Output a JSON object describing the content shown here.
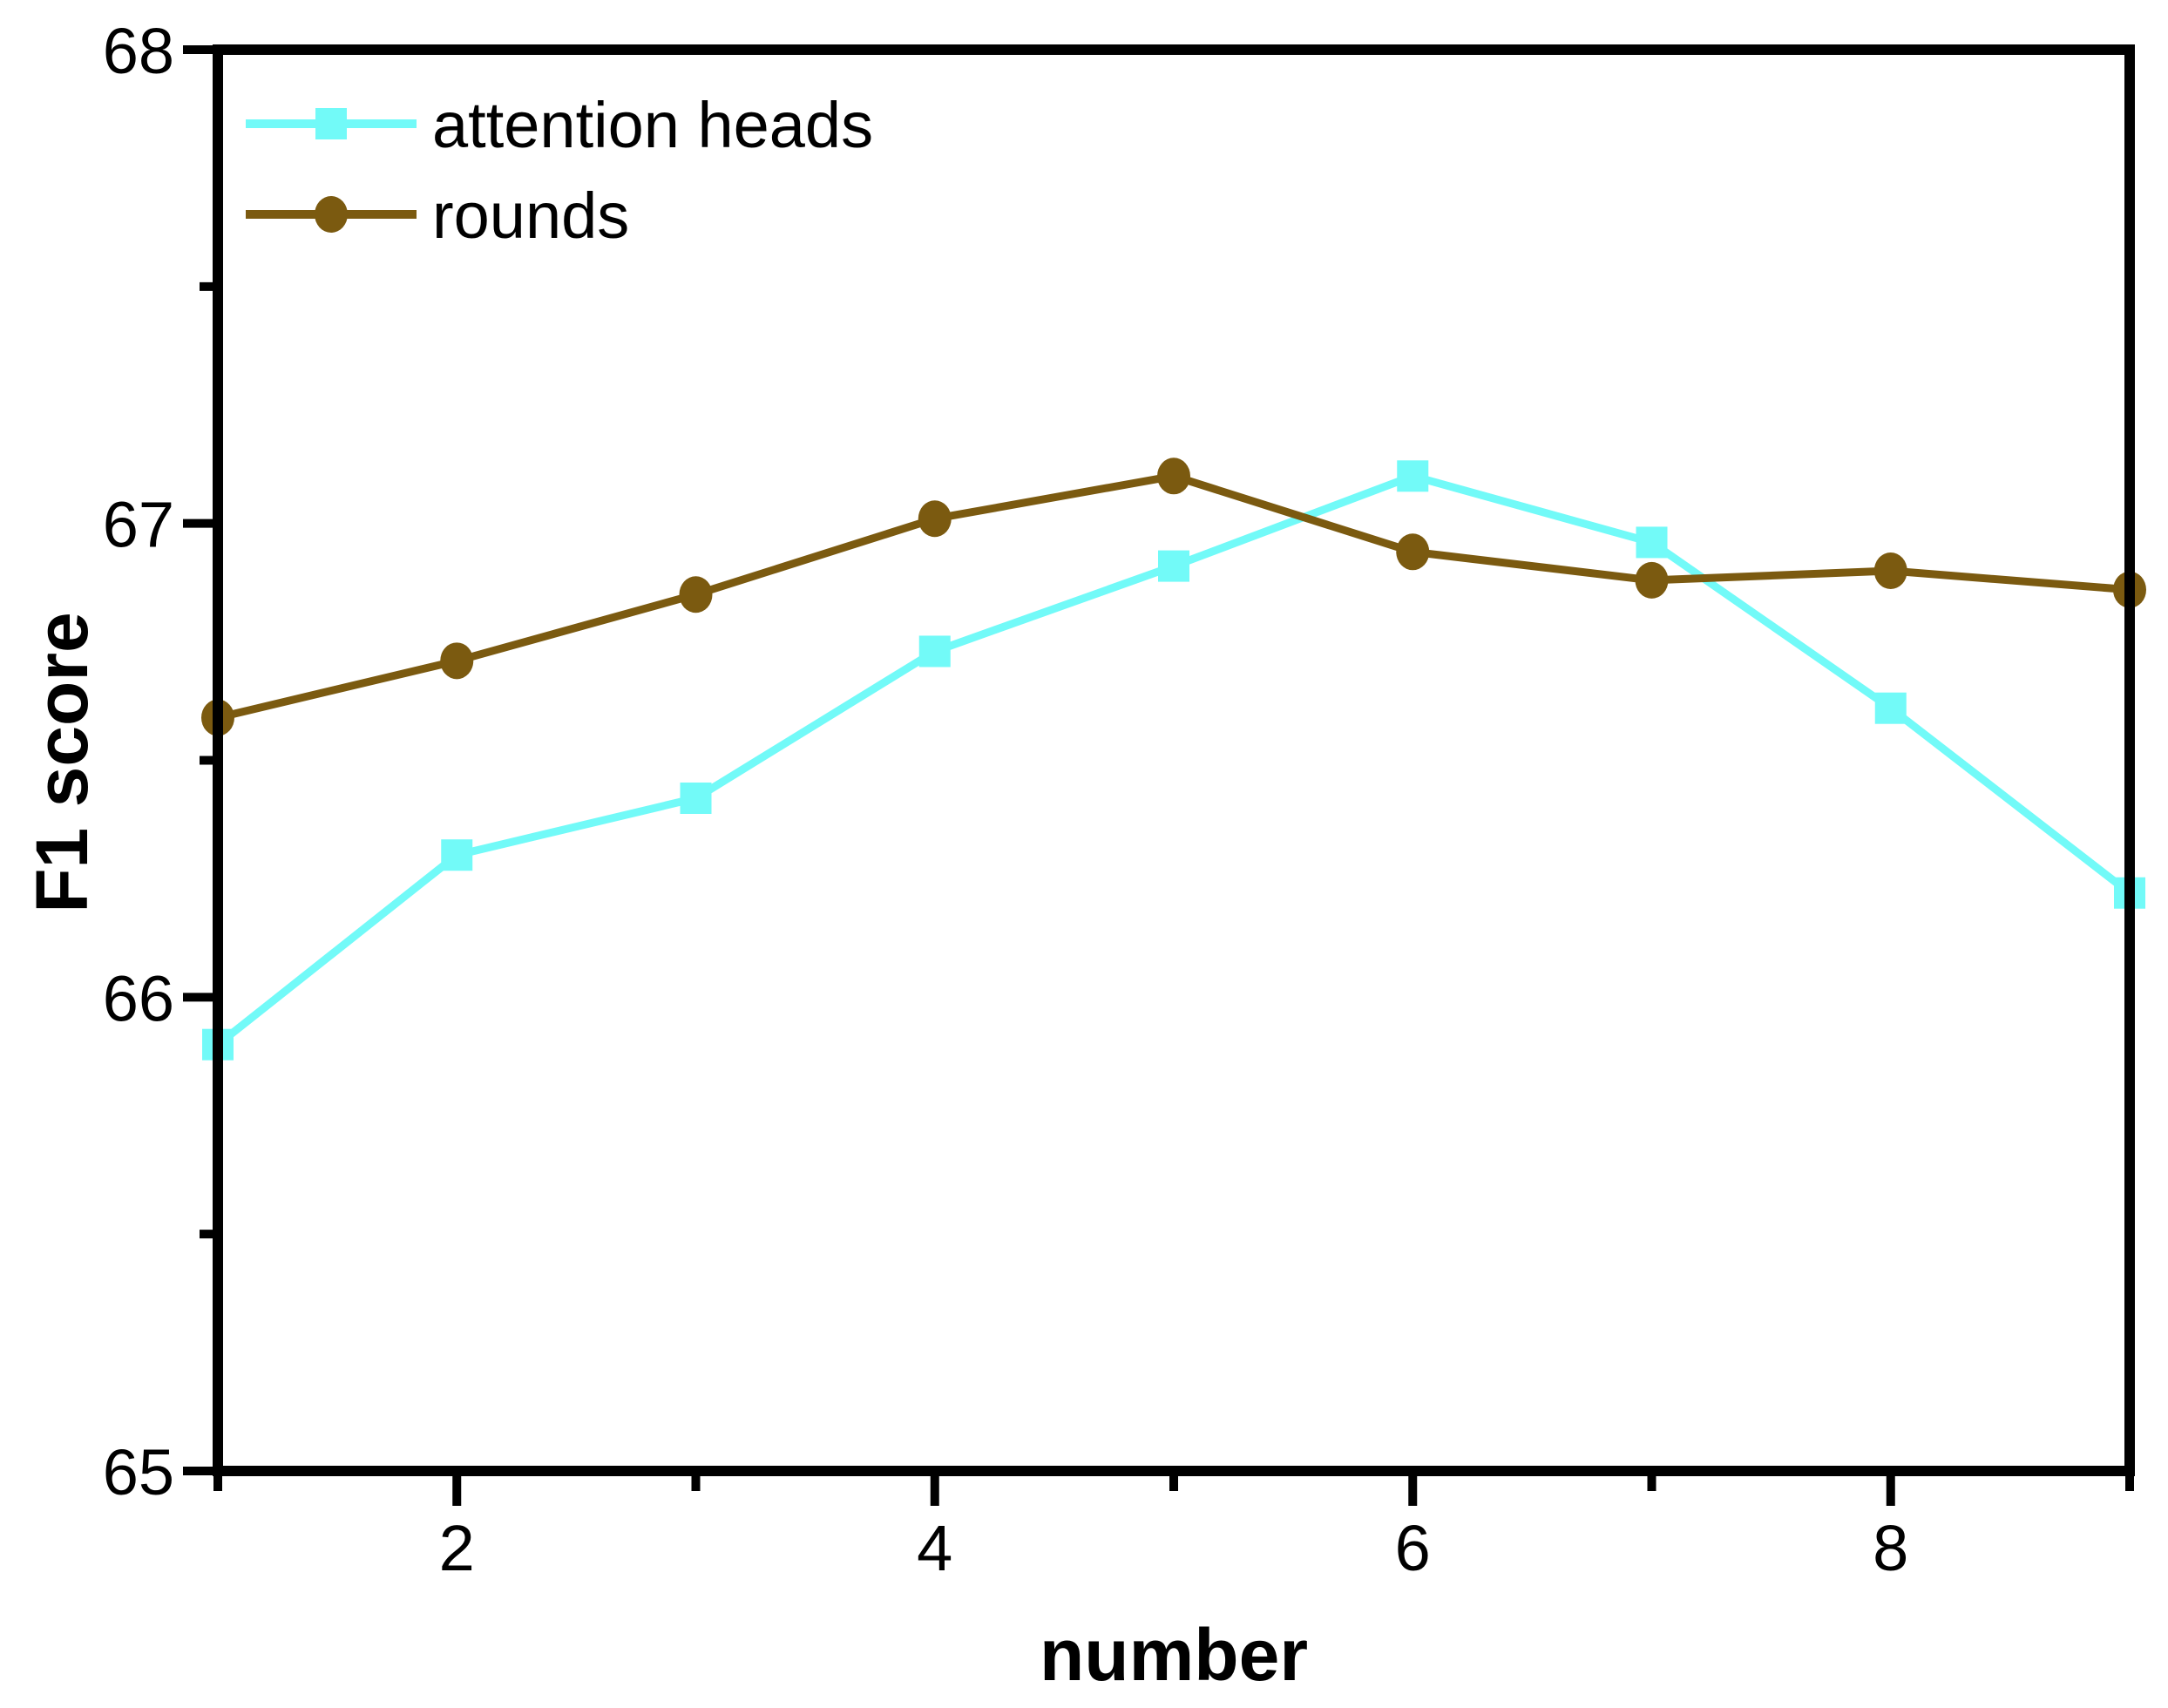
{
  "chart_data": {
    "type": "line",
    "title": "",
    "xlabel": "number",
    "ylabel": "F1 score",
    "x": [
      1,
      2,
      3,
      4,
      5,
      6,
      7,
      8,
      9
    ],
    "series": [
      {
        "name": "attention heads",
        "marker": "square",
        "color": "#72FAF8",
        "values": [
          65.9,
          66.3,
          66.42,
          66.73,
          66.91,
          67.1,
          66.96,
          66.61,
          66.22
        ]
      },
      {
        "name": "rounds",
        "marker": "circle",
        "color": "#7B5A10",
        "values": [
          66.59,
          66.71,
          66.85,
          67.01,
          67.1,
          66.94,
          66.88,
          66.9,
          66.86
        ]
      }
    ],
    "xlim": [
      1,
      9
    ],
    "ylim": [
      65,
      68
    ],
    "xticks_major": [
      2,
      4,
      6,
      8
    ],
    "xticks_minor": [
      1,
      3,
      5,
      7,
      9
    ],
    "x_tick_labels": [
      "2",
      "4",
      "6",
      "8"
    ],
    "yticks_major": [
      65,
      66,
      67,
      68
    ],
    "yticks_minor": [
      65.5,
      66.5,
      67.5
    ],
    "y_tick_labels": [
      "65",
      "66",
      "67",
      "68"
    ],
    "legend_position": "top-left",
    "grid": false,
    "axis_color": "#000000",
    "background": "#FFFFFF"
  }
}
